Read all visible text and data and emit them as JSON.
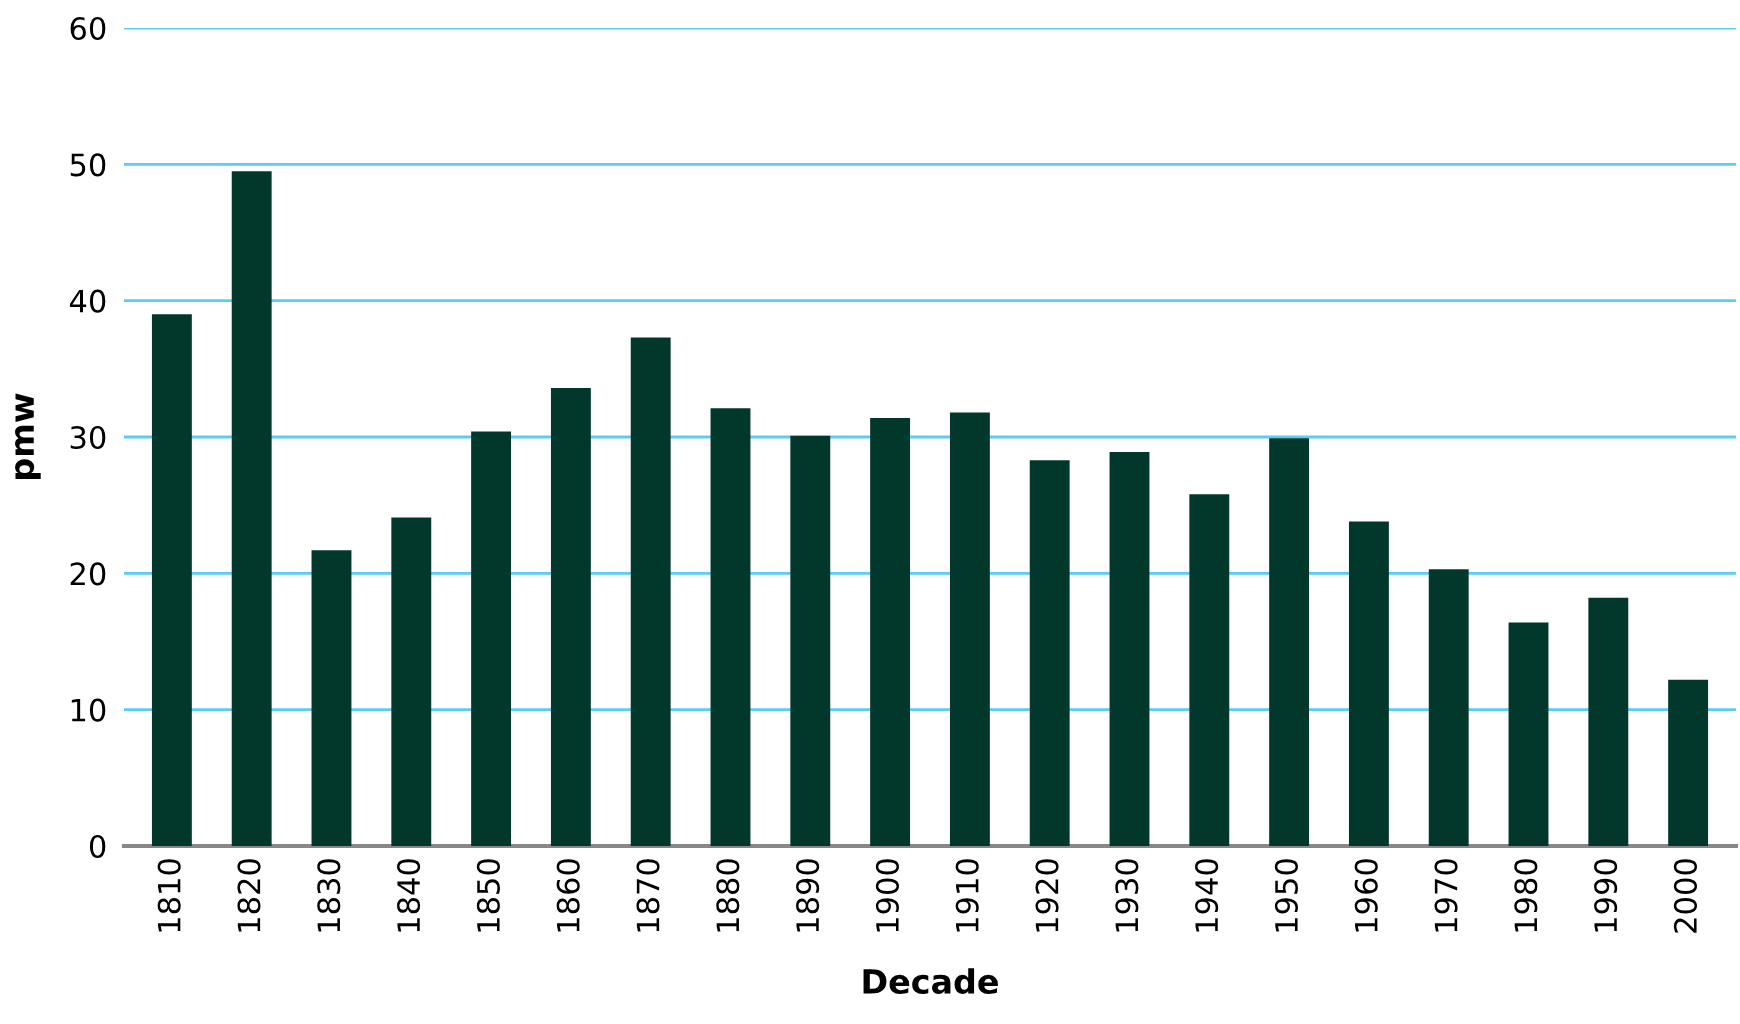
{
  "chart_data": {
    "type": "bar",
    "xlabel": "Decade",
    "ylabel": "pmw",
    "categories": [
      "1810",
      "1820",
      "1830",
      "1840",
      "1850",
      "1860",
      "1870",
      "1880",
      "1890",
      "1900",
      "1910",
      "1920",
      "1930",
      "1940",
      "1950",
      "1960",
      "1970",
      "1980",
      "1990",
      "2000"
    ],
    "values": [
      39.0,
      49.5,
      21.7,
      24.1,
      30.4,
      33.6,
      37.3,
      32.1,
      30.1,
      31.4,
      31.8,
      28.3,
      28.9,
      25.8,
      29.9,
      23.8,
      20.3,
      16.4,
      18.2,
      12.2
    ],
    "color": "#02382b",
    "ylim": [
      0,
      60
    ],
    "yticks": [
      0,
      10,
      20,
      30,
      40,
      50,
      60
    ],
    "grid": "y",
    "legend": false
  }
}
